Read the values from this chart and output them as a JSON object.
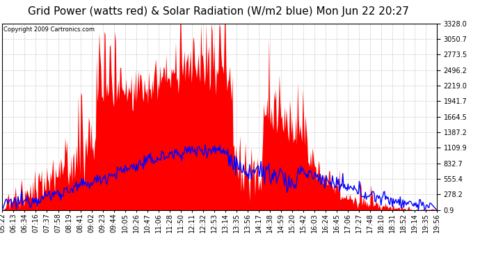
{
  "title": "Grid Power (watts red) & Solar Radiation (W/m2 blue) Mon Jun 22 20:27",
  "copyright_text": "Copyright 2009 Cartronics.com",
  "y_right_ticks": [
    0.9,
    278.2,
    555.4,
    832.7,
    1109.9,
    1387.2,
    1664.5,
    1941.7,
    2219.0,
    2496.2,
    2773.5,
    3050.7,
    3328.0
  ],
  "y_min": 0.9,
  "y_max": 3328.0,
  "x_labels": [
    "05:22",
    "06:13",
    "06:34",
    "07:16",
    "07:37",
    "07:58",
    "08:19",
    "08:41",
    "09:02",
    "09:23",
    "09:44",
    "10:05",
    "10:26",
    "10:47",
    "11:06",
    "11:28",
    "11:50",
    "12:11",
    "12:32",
    "12:53",
    "13:14",
    "13:35",
    "13:56",
    "14:17",
    "14:38",
    "14:59",
    "15:20",
    "15:42",
    "16:03",
    "16:24",
    "16:45",
    "17:06",
    "17:27",
    "17:48",
    "18:10",
    "18:31",
    "18:52",
    "19:14",
    "19:35",
    "19:56"
  ],
  "n_labels": 40,
  "red_color": "#FF0000",
  "blue_color": "#0000FF",
  "bg_color": "#FFFFFF",
  "plot_bg_color": "#FFFFFF",
  "title_fontsize": 11,
  "tick_fontsize": 7,
  "grid_color": "#BBBBBB",
  "border_color": "#000000",
  "n_points": 500
}
